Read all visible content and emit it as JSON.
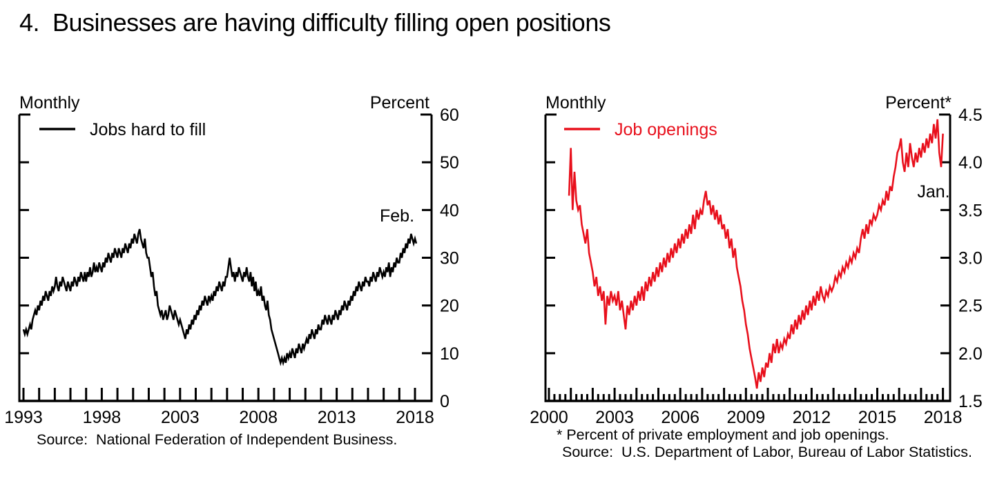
{
  "title": "4.  Businesses are having difficulty filling open positions",
  "colors": {
    "black": "#000000",
    "red": "#e8101c",
    "text": "#000000",
    "background": "#ffffff"
  },
  "chart_data": [
    {
      "type": "line",
      "frequency_label": "Monthly",
      "unit_label": "Percent",
      "legend": "Jobs hard to fill",
      "series_color": "#000000",
      "annotation": "Feb.",
      "source": "Source:  National Federation of Independent Business.",
      "x_axis": {
        "tick_years_start": 1993,
        "tick_years_end": 2018,
        "label_years": [
          1993,
          1998,
          2003,
          2008,
          2013,
          2018
        ],
        "minor_ticks_per_year": 0
      },
      "y_axis": {
        "min": 0,
        "max": 60,
        "ticks": [
          0,
          10,
          20,
          30,
          40,
          50,
          60
        ],
        "tick_labels": [
          "0",
          "10",
          "20",
          "30",
          "40",
          "50",
          "60"
        ]
      },
      "legend_position": "top-left",
      "grid": false,
      "first_point": {
        "year": 1993,
        "month": 1
      },
      "values_by_year": {
        "1993": [
          15,
          14,
          15,
          14,
          15,
          16,
          15,
          17,
          18,
          19,
          18,
          20
        ],
        "1994": [
          19,
          21,
          20,
          22,
          21,
          23,
          22,
          21,
          23,
          22,
          24,
          23
        ],
        "1995": [
          24,
          26,
          24,
          23,
          25,
          24,
          26,
          25,
          24,
          23,
          25,
          24
        ],
        "1996": [
          23,
          25,
          24,
          26,
          25,
          24,
          26,
          25,
          27,
          26,
          25,
          27
        ],
        "1997": [
          25,
          27,
          26,
          28,
          26,
          27,
          29,
          27,
          28,
          27,
          29,
          28
        ],
        "1998": [
          27,
          29,
          28,
          30,
          29,
          31,
          30,
          29,
          31,
          30,
          32,
          31
        ],
        "1999": [
          30,
          32,
          31,
          30,
          32,
          31,
          33,
          32,
          31,
          33,
          32,
          34
        ],
        "2000": [
          33,
          35,
          34,
          33,
          35,
          36,
          34,
          33,
          32,
          34,
          31,
          30
        ],
        "2001": [
          30,
          28,
          26,
          27,
          24,
          22,
          23,
          20,
          19,
          18,
          19,
          17
        ],
        "2002": [
          18,
          19,
          17,
          18,
          20,
          19,
          18,
          17,
          19,
          18,
          17,
          16
        ],
        "2003": [
          17,
          16,
          15,
          14,
          13,
          15,
          14,
          16,
          15,
          17,
          16,
          18
        ],
        "2004": [
          17,
          19,
          18,
          20,
          19,
          21,
          20,
          22,
          21,
          20,
          22,
          21
        ],
        "2005": [
          22,
          21,
          23,
          22,
          24,
          23,
          25,
          24,
          23,
          25,
          24,
          26
        ],
        "2006": [
          26,
          28,
          30,
          28,
          26,
          27,
          25,
          27,
          26,
          28,
          27,
          26
        ],
        "2007": [
          25,
          27,
          26,
          28,
          26,
          25,
          27,
          24,
          26,
          23,
          25,
          22
        ],
        "2008": [
          23,
          22,
          24,
          21,
          22,
          20,
          19,
          21,
          18,
          17,
          15,
          14
        ],
        "2009": [
          13,
          12,
          11,
          10,
          9,
          8,
          9,
          8,
          9,
          8,
          10,
          9
        ],
        "2010": [
          10,
          9,
          11,
          10,
          9,
          11,
          10,
          12,
          11,
          10,
          12,
          11
        ],
        "2011": [
          12,
          13,
          12,
          14,
          13,
          15,
          14,
          13,
          15,
          14,
          16,
          15
        ],
        "2012": [
          15,
          17,
          16,
          18,
          17,
          16,
          18,
          17,
          16,
          18,
          17,
          19
        ],
        "2013": [
          18,
          17,
          19,
          18,
          20,
          19,
          21,
          20,
          19,
          21,
          20,
          22
        ],
        "2014": [
          21,
          23,
          22,
          24,
          23,
          25,
          24,
          23,
          25,
          24,
          26,
          25
        ],
        "2015": [
          25,
          24,
          26,
          25,
          27,
          26,
          25,
          27,
          26,
          28,
          27,
          26
        ],
        "2016": [
          27,
          26,
          28,
          27,
          29,
          26,
          28,
          27,
          29,
          28,
          30,
          29
        ],
        "2017": [
          29,
          31,
          30,
          32,
          31,
          33,
          32,
          34,
          33,
          35,
          34,
          33
        ],
        "2018": [
          34,
          33
        ]
      }
    },
    {
      "type": "line",
      "frequency_label": "Monthly",
      "unit_label": "Percent*",
      "legend": "Job openings",
      "series_color": "#e8101c",
      "annotation": "Jan.",
      "footnote": "* Percent of private employment and job openings.",
      "source": "Source:  U.S. Department of Labor, Bureau of Labor Statistics.",
      "x_axis": {
        "tick_years_start": 2000,
        "tick_years_end": 2018,
        "label_years": [
          2000,
          2003,
          2006,
          2009,
          2012,
          2015,
          2018
        ],
        "minor_ticks_per_year": 4
      },
      "y_axis": {
        "min": 1.5,
        "max": 4.5,
        "ticks": [
          1.5,
          2.0,
          2.5,
          3.0,
          3.5,
          4.0,
          4.5
        ],
        "tick_labels": [
          "1.5",
          "2.0",
          "2.5",
          "3.0",
          "3.5",
          "4.0",
          "4.5"
        ]
      },
      "legend_position": "top-left",
      "grid": false,
      "first_point": {
        "year": 2000,
        "month": 12
      },
      "values_by_year": {
        "2000": [
          3.65
        ],
        "2001": [
          4.15,
          3.5,
          3.9,
          3.6,
          3.5,
          3.55,
          3.35,
          3.25,
          3.15,
          3.3,
          3.05,
          2.95
        ],
        "2002": [
          2.85,
          2.7,
          2.8,
          2.6,
          2.7,
          2.55,
          2.65,
          2.3,
          2.6,
          2.5,
          2.65,
          2.55
        ],
        "2003": [
          2.6,
          2.5,
          2.65,
          2.45,
          2.55,
          2.4,
          2.25,
          2.5,
          2.4,
          2.55,
          2.45,
          2.6
        ],
        "2004": [
          2.5,
          2.65,
          2.55,
          2.7,
          2.55,
          2.75,
          2.65,
          2.8,
          2.7,
          2.85,
          2.75,
          2.9
        ],
        "2005": [
          2.8,
          2.95,
          2.85,
          3.0,
          2.9,
          3.05,
          2.95,
          3.1,
          3.0,
          3.15,
          3.05,
          3.2
        ],
        "2006": [
          3.1,
          3.25,
          3.15,
          3.3,
          3.2,
          3.35,
          3.25,
          3.45,
          3.3,
          3.5,
          3.4,
          3.5
        ],
        "2007": [
          3.45,
          3.6,
          3.7,
          3.55,
          3.6,
          3.45,
          3.55,
          3.4,
          3.5,
          3.35,
          3.45,
          3.3
        ],
        "2008": [
          3.35,
          3.2,
          3.3,
          3.1,
          3.2,
          3.0,
          3.1,
          2.9,
          2.8,
          2.7,
          2.55,
          2.45
        ],
        "2009": [
          2.3,
          2.2,
          2.05,
          1.95,
          1.85,
          1.75,
          1.63,
          1.8,
          1.7,
          1.85,
          1.75,
          1.9
        ],
        "2010": [
          1.85,
          2.0,
          1.9,
          2.1,
          2.0,
          2.15,
          2.0,
          2.1,
          2.05,
          2.15,
          2.1,
          2.2
        ],
        "2011": [
          2.15,
          2.3,
          2.2,
          2.35,
          2.25,
          2.4,
          2.3,
          2.45,
          2.35,
          2.5,
          2.4,
          2.55
        ],
        "2012": [
          2.45,
          2.6,
          2.5,
          2.65,
          2.55,
          2.7,
          2.6,
          2.55,
          2.65,
          2.6,
          2.7,
          2.65
        ],
        "2013": [
          2.7,
          2.8,
          2.75,
          2.85,
          2.8,
          2.9,
          2.85,
          2.95,
          2.9,
          3.0,
          2.95,
          3.05
        ],
        "2014": [
          3.0,
          3.1,
          3.05,
          3.2,
          3.3,
          3.2,
          3.35,
          3.25,
          3.4,
          3.35,
          3.45,
          3.4
        ],
        "2015": [
          3.45,
          3.55,
          3.5,
          3.6,
          3.55,
          3.7,
          3.6,
          3.75,
          3.7,
          3.85,
          3.95,
          4.1
        ],
        "2016": [
          4.15,
          4.25,
          4.0,
          3.9,
          4.1,
          3.95,
          4.2,
          4.05,
          3.95,
          4.1,
          4.0,
          4.15
        ],
        "2017": [
          4.05,
          4.2,
          4.1,
          4.25,
          4.15,
          4.3,
          4.2,
          4.4,
          4.25,
          4.45,
          4.1,
          3.95
        ],
        "2018": [
          4.3
        ]
      }
    }
  ]
}
